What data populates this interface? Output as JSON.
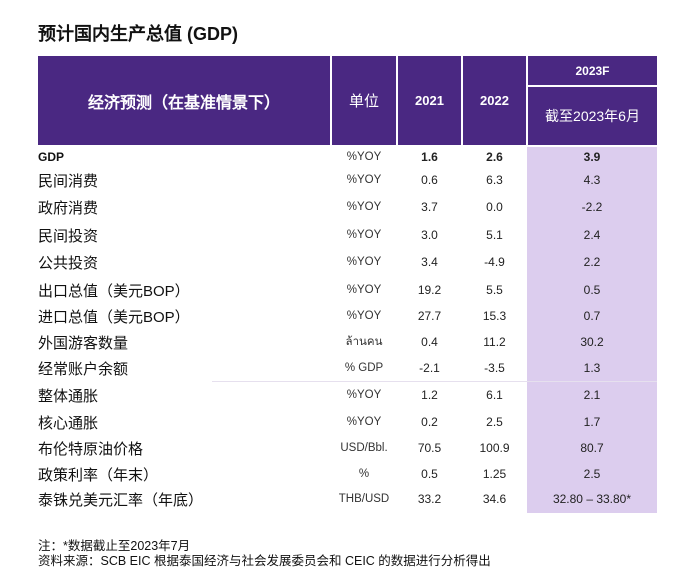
{
  "title": "预计国内生产总值 (GDP)",
  "colors": {
    "header": "#4a2882",
    "forecast_column": "#dccdee"
  },
  "header": {
    "label": "经济预测（在基准情景下）",
    "unit": "单位",
    "y2021": "2021",
    "y2022": "2022",
    "forecast": "2023F",
    "forecast_sub": "截至2023年6月"
  },
  "rows": [
    {
      "label": "GDP",
      "unit": "%YOY",
      "y2021": "1.6",
      "y2022": "2.6",
      "f2023": "3.9"
    },
    {
      "label": "民间消费",
      "unit": "%YOY",
      "y2021": "0.6",
      "y2022": "6.3",
      "f2023": "4.3"
    },
    {
      "label": "政府消费",
      "unit": "%YOY",
      "y2021": "3.7",
      "y2022": "0.0",
      "f2023": "-2.2"
    },
    {
      "label": "民间投资",
      "unit": "%YOY",
      "y2021": "3.0",
      "y2022": "5.1",
      "f2023": "2.4"
    },
    {
      "label": "公共投资",
      "unit": "%YOY",
      "y2021": "3.4",
      "y2022": "-4.9",
      "f2023": "2.2"
    },
    {
      "label": "出口总值（美元BOP）",
      "unit": "%YOY",
      "y2021": "19.2",
      "y2022": "5.5",
      "f2023": "0.5"
    },
    {
      "label": "进口总值（美元BOP）",
      "unit": "%YOY",
      "y2021": "27.7",
      "y2022": "15.3",
      "f2023": "0.7"
    },
    {
      "label": "外国游客数量",
      "unit": "ล้านคน",
      "y2021": "0.4",
      "y2022": "11.2",
      "f2023": "30.2"
    },
    {
      "label": "经常账户余额",
      "unit": "% GDP",
      "y2021": "-2.1",
      "y2022": "-3.5",
      "f2023": "1.3"
    },
    {
      "label": "整体通胀",
      "unit": "%YOY",
      "y2021": "1.2",
      "y2022": "6.1",
      "f2023": "2.1"
    },
    {
      "label": "核心通胀",
      "unit": "%YOY",
      "y2021": "0.2",
      "y2022": "2.5",
      "f2023": "1.7"
    },
    {
      "label": "布伦特原油价格",
      "unit": "USD/Bbl.",
      "y2021": "70.5",
      "y2022": "100.9",
      "f2023": "80.7"
    },
    {
      "label": "政策利率（年末）",
      "unit": "%",
      "y2021": "0.5",
      "y2022": "1.25",
      "f2023": "2.5"
    },
    {
      "label": "泰铢兑美元汇率（年底）",
      "unit": "THB/USD",
      "y2021": "33.2",
      "y2022": "34.6",
      "f2023": "32.80 – 33.80*"
    }
  ],
  "note": "注：*数据截止至2023年7月",
  "source": "资料来源：SCB EIC 根据泰国经济与社会发展委员会和 CEIC 的数据进行分析得出"
}
